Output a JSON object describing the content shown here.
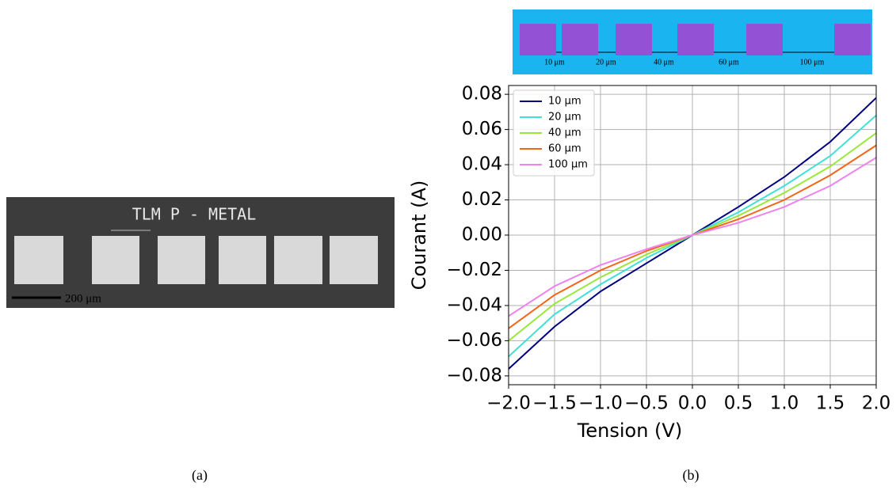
{
  "figure_a": {
    "title": "TLM P - METAL",
    "scale_bar": "200 μm"
  },
  "schematic": {
    "labels": [
      "10 μm",
      "20 μm",
      "40 μm",
      "60 μm",
      "100 μm"
    ]
  },
  "captions": [
    "(a)",
    "(b)"
  ],
  "chart_data": {
    "type": "line",
    "x_label": "Tension (V)",
    "y_label": "Courant (A)",
    "x": [
      -2,
      -1.5,
      -1,
      -0.5,
      0,
      0.5,
      1,
      1.5,
      2
    ],
    "series": [
      {
        "name": "10 μm",
        "color": "#000080",
        "values": [
          -0.076,
          -0.052,
          -0.032,
          -0.016,
          0,
          0.016,
          0.033,
          0.053,
          0.078
        ]
      },
      {
        "name": "20 μm",
        "color": "#40e0d8",
        "values": [
          -0.069,
          -0.045,
          -0.028,
          -0.013,
          0,
          0.013,
          0.028,
          0.045,
          0.068
        ]
      },
      {
        "name": "40 μm",
        "color": "#9be83c",
        "values": [
          -0.06,
          -0.039,
          -0.024,
          -0.011,
          0,
          0.011,
          0.024,
          0.039,
          0.058
        ]
      },
      {
        "name": "60 μm",
        "color": "#f26618",
        "values": [
          -0.053,
          -0.034,
          -0.02,
          -0.009,
          0,
          0.009,
          0.02,
          0.034,
          0.051
        ]
      },
      {
        "name": "100 μm",
        "color": "#ee82ee",
        "values": [
          -0.046,
          -0.029,
          -0.017,
          -0.008,
          0,
          0.007,
          0.016,
          0.028,
          0.044
        ]
      }
    ],
    "xlim": [
      -2,
      2
    ],
    "ylim": [
      -0.085,
      0.085
    ],
    "xticks": [
      {
        "value": -2,
        "label": "−2.0"
      },
      {
        "value": -1.5,
        "label": "−1.5"
      },
      {
        "value": -1,
        "label": "−1.0"
      },
      {
        "value": -0.5,
        "label": "−0.5"
      },
      {
        "value": 0,
        "label": "0.0"
      },
      0.5,
      {
        "value": 1,
        "label": "1.0"
      },
      1.5,
      {
        "value": 2,
        "label": "2.0"
      }
    ],
    "yticks": [
      {
        "value": -0.08,
        "label": "−0.08"
      },
      {
        "value": -0.06,
        "label": "−0.06"
      },
      {
        "value": -0.04,
        "label": "−0.04"
      },
      {
        "value": -0.02,
        "label": "−0.02"
      },
      {
        "value": 0,
        "label": "0.00"
      },
      0.02,
      0.04,
      0.06,
      0.08
    ],
    "grid": true,
    "legend": "upper left"
  }
}
